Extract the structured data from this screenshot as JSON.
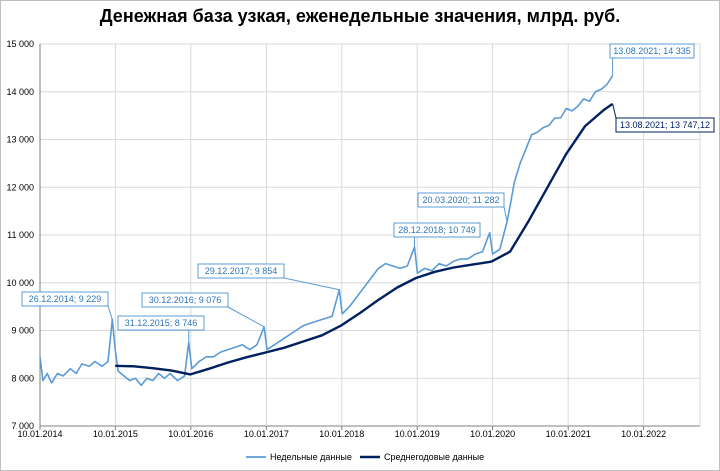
{
  "chart_data": {
    "type": "line",
    "title": "Денежная база узкая, еженедельные значения, млрд. руб.",
    "xlabel": "",
    "ylabel": "",
    "ylim": [
      7000,
      15000
    ],
    "xlim": [
      "2014-01-10",
      "2022-10-10"
    ],
    "grid": true,
    "legend_position": "bottom",
    "y_ticks": [
      "7 000",
      "8 000",
      "9 000",
      "10 000",
      "11 000",
      "12 000",
      "13 000",
      "14 000",
      "15 000"
    ],
    "x_ticks": [
      "10.01.2014",
      "10.01.2015",
      "10.01.2016",
      "10.01.2017",
      "10.01.2018",
      "10.01.2019",
      "10.01.2020",
      "10.01.2021",
      "10.01.2022"
    ],
    "colors": {
      "weekly": "#5b9bd5",
      "average": "#002060",
      "grid": "#d9d9d9",
      "weekly_label": "#2e75b6"
    },
    "series": [
      {
        "name": "Недельные данные",
        "points": [
          [
            "2014-01-10",
            8450
          ],
          [
            "2014-01-24",
            7950
          ],
          [
            "2014-02-14",
            8100
          ],
          [
            "2014-03-07",
            7900
          ],
          [
            "2014-04-04",
            8100
          ],
          [
            "2014-05-02",
            8050
          ],
          [
            "2014-06-06",
            8200
          ],
          [
            "2014-07-04",
            8100
          ],
          [
            "2014-08-01",
            8300
          ],
          [
            "2014-09-05",
            8250
          ],
          [
            "2014-10-03",
            8350
          ],
          [
            "2014-11-07",
            8250
          ],
          [
            "2014-12-05",
            8350
          ],
          [
            "2014-12-26",
            9229
          ],
          [
            "2015-01-09",
            8600
          ],
          [
            "2015-01-23",
            8150
          ],
          [
            "2015-02-20",
            8050
          ],
          [
            "2015-03-20",
            7950
          ],
          [
            "2015-04-17",
            8000
          ],
          [
            "2015-05-15",
            7850
          ],
          [
            "2015-06-12",
            8000
          ],
          [
            "2015-07-10",
            7950
          ],
          [
            "2015-08-07",
            8100
          ],
          [
            "2015-09-04",
            8000
          ],
          [
            "2015-10-02",
            8100
          ],
          [
            "2015-11-06",
            7950
          ],
          [
            "2015-12-11",
            8050
          ],
          [
            "2015-12-31",
            8746
          ],
          [
            "2016-01-15",
            8200
          ],
          [
            "2016-02-19",
            8350
          ],
          [
            "2016-03-25",
            8450
          ],
          [
            "2016-04-29",
            8450
          ],
          [
            "2016-06-03",
            8550
          ],
          [
            "2016-07-08",
            8600
          ],
          [
            "2016-08-12",
            8650
          ],
          [
            "2016-09-16",
            8700
          ],
          [
            "2016-10-21",
            8600
          ],
          [
            "2016-11-25",
            8700
          ],
          [
            "2016-12-30",
            9076
          ],
          [
            "2017-01-13",
            8600
          ],
          [
            "2017-02-17",
            8700
          ],
          [
            "2017-03-24",
            8800
          ],
          [
            "2017-04-28",
            8900
          ],
          [
            "2017-06-02",
            9000
          ],
          [
            "2017-07-07",
            9100
          ],
          [
            "2017-08-11",
            9150
          ],
          [
            "2017-09-15",
            9200
          ],
          [
            "2017-10-20",
            9250
          ],
          [
            "2017-11-24",
            9300
          ],
          [
            "2017-12-29",
            9854
          ],
          [
            "2018-01-12",
            9350
          ],
          [
            "2018-02-16",
            9500
          ],
          [
            "2018-03-23",
            9700
          ],
          [
            "2018-04-27",
            9900
          ],
          [
            "2018-06-01",
            10100
          ],
          [
            "2018-07-06",
            10300
          ],
          [
            "2018-08-10",
            10400
          ],
          [
            "2018-09-14",
            10350
          ],
          [
            "2018-10-19",
            10300
          ],
          [
            "2018-11-23",
            10350
          ],
          [
            "2018-12-28",
            10749
          ],
          [
            "2019-01-11",
            10200
          ],
          [
            "2019-02-15",
            10300
          ],
          [
            "2019-03-22",
            10250
          ],
          [
            "2019-04-26",
            10400
          ],
          [
            "2019-05-31",
            10350
          ],
          [
            "2019-07-05",
            10450
          ],
          [
            "2019-08-09",
            10500
          ],
          [
            "2019-09-13",
            10500
          ],
          [
            "2019-10-18",
            10600
          ],
          [
            "2019-11-22",
            10650
          ],
          [
            "2019-12-27",
            11050
          ],
          [
            "2020-01-10",
            10600
          ],
          [
            "2020-02-14",
            10700
          ],
          [
            "2020-03-20",
            11282
          ],
          [
            "2020-04-03",
            11600
          ],
          [
            "2020-04-24",
            12100
          ],
          [
            "2020-05-22",
            12500
          ],
          [
            "2020-06-19",
            12800
          ],
          [
            "2020-07-17",
            13100
          ],
          [
            "2020-08-14",
            13150
          ],
          [
            "2020-09-11",
            13250
          ],
          [
            "2020-10-09",
            13300
          ],
          [
            "2020-11-06",
            13450
          ],
          [
            "2020-12-04",
            13450
          ],
          [
            "2021-01-01",
            13650
          ],
          [
            "2021-01-29",
            13600
          ],
          [
            "2021-02-26",
            13700
          ],
          [
            "2021-03-26",
            13850
          ],
          [
            "2021-04-23",
            13800
          ],
          [
            "2021-05-21",
            14000
          ],
          [
            "2021-06-18",
            14050
          ],
          [
            "2021-07-16",
            14150
          ],
          [
            "2021-08-13",
            14335
          ]
        ]
      },
      {
        "name": "Среднегодовые данные",
        "points": [
          [
            "2015-01-09",
            8260
          ],
          [
            "2015-04-10",
            8250
          ],
          [
            "2015-07-10",
            8210
          ],
          [
            "2015-10-09",
            8160
          ],
          [
            "2016-01-08",
            8080
          ],
          [
            "2016-04-08",
            8200
          ],
          [
            "2016-07-08",
            8330
          ],
          [
            "2016-10-07",
            8440
          ],
          [
            "2017-01-06",
            8540
          ],
          [
            "2017-04-07",
            8640
          ],
          [
            "2017-07-07",
            8770
          ],
          [
            "2017-10-06",
            8900
          ],
          [
            "2018-01-05",
            9100
          ],
          [
            "2018-04-06",
            9360
          ],
          [
            "2018-07-06",
            9640
          ],
          [
            "2018-10-05",
            9900
          ],
          [
            "2019-01-04",
            10100
          ],
          [
            "2019-04-05",
            10230
          ],
          [
            "2019-07-05",
            10320
          ],
          [
            "2019-10-04",
            10380
          ],
          [
            "2020-01-03",
            10440
          ],
          [
            "2020-04-03",
            10650
          ],
          [
            "2020-07-03",
            11300
          ],
          [
            "2020-10-02",
            12000
          ],
          [
            "2021-01-01",
            12700
          ],
          [
            "2021-04-02",
            13280
          ],
          [
            "2021-07-02",
            13620
          ],
          [
            "2021-08-13",
            13747.12
          ]
        ]
      }
    ],
    "annotations": [
      {
        "text": "26.12.2014; 9 229",
        "x": "2014-12-26",
        "y": 9229,
        "series": 0
      },
      {
        "text": "31.12.2015; 8 746",
        "x": "2015-12-31",
        "y": 8746,
        "series": 0
      },
      {
        "text": "30.12.2016; 9 076",
        "x": "2016-12-30",
        "y": 9076,
        "series": 0
      },
      {
        "text": "29.12.2017; 9 854",
        "x": "2017-12-29",
        "y": 9854,
        "series": 0
      },
      {
        "text": "28.12.2018; 10 749",
        "x": "2018-12-28",
        "y": 10749,
        "series": 0
      },
      {
        "text": "20.03.2020; 11 282",
        "x": "2020-03-20",
        "y": 11282,
        "series": 0
      },
      {
        "text": "13.08.2021; 14 335",
        "x": "2021-08-13",
        "y": 14335,
        "series": 0
      },
      {
        "text": "13.08.2021; 13 747,12",
        "x": "2021-08-13",
        "y": 13747.12,
        "series": 1
      }
    ]
  }
}
